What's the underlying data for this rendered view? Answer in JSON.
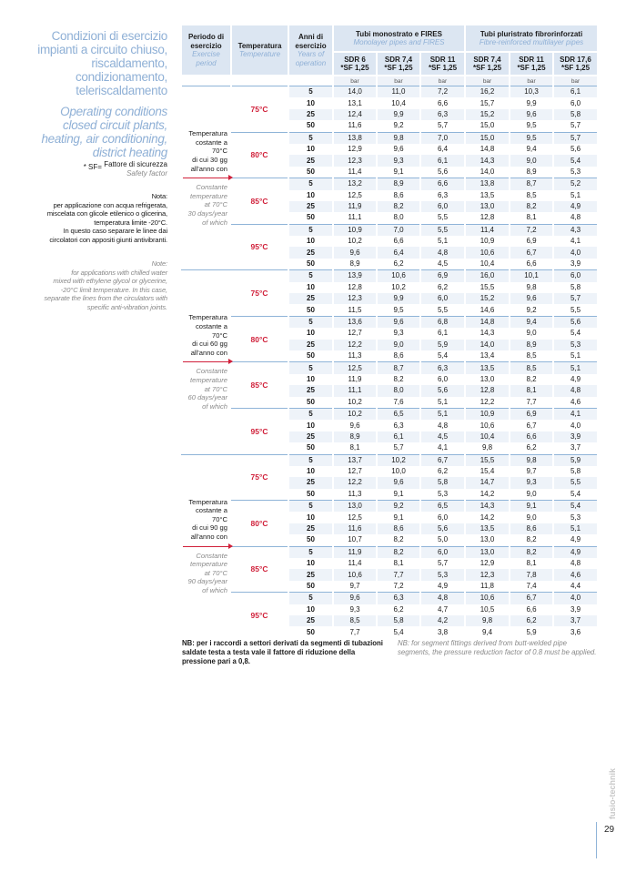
{
  "side": {
    "title_it": [
      "Condizioni di esercizio",
      "impianti a circuito chiuso,",
      "riscaldamento,",
      "condizionamento,",
      "teleriscaldamento"
    ],
    "title_en": [
      "Operating conditions",
      "closed circuit plants,",
      "heating, air conditioning,",
      "district heating"
    ],
    "sf_prefix": "* SF=",
    "sf_it": "Fattore di sicurezza",
    "sf_en": "Safety factor",
    "nota_it": [
      "Nota:",
      "per applicazione con acqua refrigerata,",
      "miscelata con glicole etilenico o glicerina,",
      "temperatura limite  -20°C.",
      "In questo caso separare le linee dai",
      "circolatori con appositi giunti antivibranti."
    ],
    "nota_en": [
      "Note:",
      "for applications with chilled water",
      "mixed with ethylene glycol or glycerine,",
      "-20°C limit temperature. In this case,",
      "separate the lines from the circulators with",
      "specific anti-vibration joints."
    ]
  },
  "header": {
    "period_it": "Periodo di esercizio",
    "period_en": "Exercise period",
    "temp_it": "Temperatura",
    "temp_en": "Temperature",
    "years_it": "Anni di esercizio",
    "years_en": "Years of operation",
    "group1_it": "Tubi monostrato e FIRES",
    "group1_en": "Monolayer pipes and FIRES",
    "group2_it": "Tubi pluristrato fibrorinforzati",
    "group2_en": "Fibre-reinforced multilayer pipes",
    "columns": [
      {
        "sdr": "SDR 6",
        "sf": "*SF 1,25"
      },
      {
        "sdr": "SDR 7,4",
        "sf": "*SF 1,25"
      },
      {
        "sdr": "SDR 11",
        "sf": "*SF 1,25"
      },
      {
        "sdr": "SDR 7,4",
        "sf": "*SF 1,25"
      },
      {
        "sdr": "SDR 11",
        "sf": "*SF 1,25"
      },
      {
        "sdr": "SDR 17,6",
        "sf": "*SF 1,25"
      }
    ],
    "unit": "bar"
  },
  "years": [
    "5",
    "10",
    "25",
    "50"
  ],
  "periods": [
    {
      "label_it": [
        "Temperatura",
        "costante a 70°C",
        "di cui 30 gg",
        "all'anno con"
      ],
      "label_en": [
        "Constante",
        "temperature",
        "at 70°C",
        "30 days/year",
        "of which"
      ],
      "temps": [
        {
          "temp": "75°C",
          "rows": [
            [
              "14,0",
              "11,0",
              "7,2",
              "16,2",
              "10,3",
              "6,1"
            ],
            [
              "13,1",
              "10,4",
              "6,6",
              "15,7",
              "9,9",
              "6,0"
            ],
            [
              "12,4",
              "9,9",
              "6,3",
              "15,2",
              "9,6",
              "5,8"
            ],
            [
              "11,6",
              "9,2",
              "5,7",
              "15,0",
              "9,5",
              "5,7"
            ]
          ]
        },
        {
          "temp": "80°C",
          "rows": [
            [
              "13,8",
              "9,8",
              "7,0",
              "15,0",
              "9,5",
              "5,7"
            ],
            [
              "12,9",
              "9,6",
              "6,4",
              "14,8",
              "9,4",
              "5,6"
            ],
            [
              "12,3",
              "9,3",
              "6,1",
              "14,3",
              "9,0",
              "5,4"
            ],
            [
              "11,4",
              "9,1",
              "5,6",
              "14,0",
              "8,9",
              "5,3"
            ]
          ]
        },
        {
          "temp": "85°C",
          "rows": [
            [
              "13,2",
              "8,9",
              "6,6",
              "13,8",
              "8,7",
              "5,2"
            ],
            [
              "12,5",
              "8,6",
              "6,3",
              "13,5",
              "8,5",
              "5,1"
            ],
            [
              "11,9",
              "8,2",
              "6,0",
              "13,0",
              "8,2",
              "4,9"
            ],
            [
              "11,1",
              "8,0",
              "5,5",
              "12,8",
              "8,1",
              "4,8"
            ]
          ]
        },
        {
          "temp": "95°C",
          "rows": [
            [
              "10,9",
              "7,0",
              "5,5",
              "11,4",
              "7,2",
              "4,3"
            ],
            [
              "10,2",
              "6,6",
              "5,1",
              "10,9",
              "6,9",
              "4,1"
            ],
            [
              "9,6",
              "6,4",
              "4,8",
              "10,6",
              "6,7",
              "4,0"
            ],
            [
              "8,9",
              "6,2",
              "4,5",
              "10,4",
              "6,6",
              "3,9"
            ]
          ]
        }
      ]
    },
    {
      "label_it": [
        "Temperatura",
        "costante a 70°C",
        "di cui 60 gg",
        "all'anno con"
      ],
      "label_en": [
        "Constante",
        "temperature",
        "at 70°C",
        "60 days/year",
        "of which"
      ],
      "temps": [
        {
          "temp": "75°C",
          "rows": [
            [
              "13,9",
              "10,6",
              "6,9",
              "16,0",
              "10,1",
              "6,0"
            ],
            [
              "12,8",
              "10,2",
              "6,2",
              "15,5",
              "9,8",
              "5,8"
            ],
            [
              "12,3",
              "9,9",
              "6,0",
              "15,2",
              "9,6",
              "5,7"
            ],
            [
              "11,5",
              "9,5",
              "5,5",
              "14,6",
              "9,2",
              "5,5"
            ]
          ]
        },
        {
          "temp": "80°C",
          "rows": [
            [
              "13,6",
              "9,6",
              "6,8",
              "14,8",
              "9,4",
              "5,6"
            ],
            [
              "12,7",
              "9,3",
              "6,1",
              "14,3",
              "9,0",
              "5,4"
            ],
            [
              "12,2",
              "9,0",
              "5,9",
              "14,0",
              "8,9",
              "5,3"
            ],
            [
              "11,3",
              "8,6",
              "5,4",
              "13,4",
              "8,5",
              "5,1"
            ]
          ]
        },
        {
          "temp": "85°C",
          "rows": [
            [
              "12,5",
              "8,7",
              "6,3",
              "13,5",
              "8,5",
              "5,1"
            ],
            [
              "11,9",
              "8,2",
              "6,0",
              "13,0",
              "8,2",
              "4,9"
            ],
            [
              "11,1",
              "8,0",
              "5,6",
              "12,8",
              "8,1",
              "4,8"
            ],
            [
              "10,2",
              "7,6",
              "5,1",
              "12,2",
              "7,7",
              "4,6"
            ]
          ]
        },
        {
          "temp": "95°C",
          "rows": [
            [
              "10,2",
              "6,5",
              "5,1",
              "10,9",
              "6,9",
              "4,1"
            ],
            [
              "9,6",
              "6,3",
              "4,8",
              "10,6",
              "6,7",
              "4,0"
            ],
            [
              "8,9",
              "6,1",
              "4,5",
              "10,4",
              "6,6",
              "3,9"
            ],
            [
              "8,1",
              "5,7",
              "4,1",
              "9,8",
              "6,2",
              "3,7"
            ]
          ]
        }
      ]
    },
    {
      "label_it": [
        "Temperatura",
        "costante a 70°C",
        "di cui 90 gg",
        "all'anno con"
      ],
      "label_en": [
        "Constante",
        "temperature",
        "at 70°C",
        "90 days/year",
        "of which"
      ],
      "temps": [
        {
          "temp": "75°C",
          "rows": [
            [
              "13,7",
              "10,2",
              "6,7",
              "15,5",
              "9,8",
              "5,9"
            ],
            [
              "12,7",
              "10,0",
              "6,2",
              "15,4",
              "9,7",
              "5,8"
            ],
            [
              "12,2",
              "9,6",
              "5,8",
              "14,7",
              "9,3",
              "5,5"
            ],
            [
              "11,3",
              "9,1",
              "5,3",
              "14,2",
              "9,0",
              "5,4"
            ]
          ]
        },
        {
          "temp": "80°C",
          "rows": [
            [
              "13,0",
              "9,2",
              "6,5",
              "14,3",
              "9,1",
              "5,4"
            ],
            [
              "12,5",
              "9,1",
              "6,0",
              "14,2",
              "9,0",
              "5,3"
            ],
            [
              "11,6",
              "8,6",
              "5,6",
              "13,5",
              "8,6",
              "5,1"
            ],
            [
              "10,7",
              "8,2",
              "5,0",
              "13,0",
              "8,2",
              "4,9"
            ]
          ]
        },
        {
          "temp": "85°C",
          "rows": [
            [
              "11,9",
              "8,2",
              "6,0",
              "13,0",
              "8,2",
              "4,9"
            ],
            [
              "11,4",
              "8,1",
              "5,7",
              "12,9",
              "8,1",
              "4,8"
            ],
            [
              "10,6",
              "7,7",
              "5,3",
              "12,3",
              "7,8",
              "4,6"
            ],
            [
              "9,7",
              "7,2",
              "4,9",
              "11,8",
              "7,4",
              "4,4"
            ]
          ]
        },
        {
          "temp": "95°C",
          "rows": [
            [
              "9,6",
              "6,3",
              "4,8",
              "10,6",
              "6,7",
              "4,0"
            ],
            [
              "9,3",
              "6,2",
              "4,7",
              "10,5",
              "6,6",
              "3,9"
            ],
            [
              "8,5",
              "5,8",
              "4,2",
              "9,8",
              "6,2",
              "3,7"
            ],
            [
              "7,7",
              "5,4",
              "3,8",
              "9,4",
              "5,9",
              "3,6"
            ]
          ]
        }
      ]
    }
  ],
  "footnotes": {
    "nb_it": "NB: per i raccordi a settori derivati da segmenti di tubazioni saldate testa a testa vale il fattore di riduzione della pressione pari a 0,8.",
    "nb_en": "NB: for segment fittings derived from butt-welded pipe segments, the pressure reduction factor of 0.8 must be applied."
  },
  "footer": {
    "brand": "fusio-technik",
    "page_number": "29"
  },
  "colors": {
    "accent_blue": "#8fb0d6",
    "temperature_red": "#d0203a",
    "header_bg": "#dce6f2"
  }
}
